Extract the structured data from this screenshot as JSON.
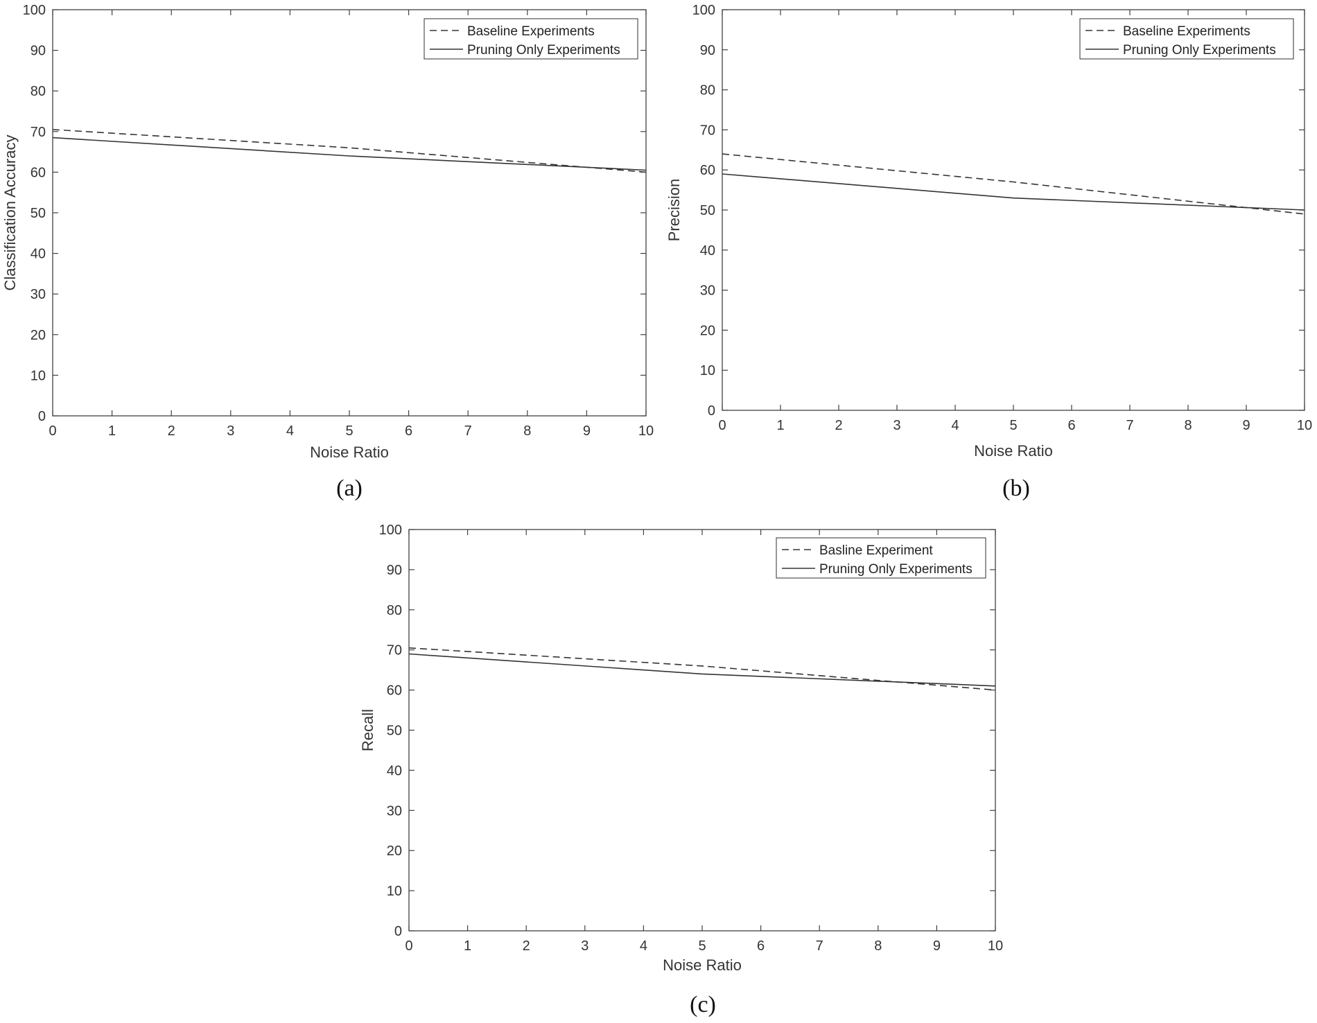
{
  "chart_data": [
    {
      "type": "line",
      "caption": "(a)",
      "xlabel": "Noise Ratio",
      "ylabel": "Classification Accuracy",
      "xlim": [
        0,
        10
      ],
      "ylim": [
        0,
        100
      ],
      "xticks": [
        0,
        1,
        2,
        3,
        4,
        5,
        6,
        7,
        8,
        9,
        10
      ],
      "yticks": [
        0,
        10,
        20,
        30,
        40,
        50,
        60,
        70,
        80,
        90,
        100
      ],
      "legend_position": "top-right",
      "grid": false,
      "series": [
        {
          "name": "Baseline Experiments",
          "style": "dashed",
          "x": [
            0,
            5,
            10
          ],
          "y": [
            70.5,
            66,
            60
          ]
        },
        {
          "name": "Pruning Only Experiments",
          "style": "solid",
          "x": [
            0,
            5,
            10
          ],
          "y": [
            68.5,
            64,
            60.5
          ]
        }
      ]
    },
    {
      "type": "line",
      "caption": "(b)",
      "xlabel": "Noise Ratio",
      "ylabel": "Precision",
      "xlim": [
        0,
        10
      ],
      "ylim": [
        0,
        100
      ],
      "xticks": [
        0,
        1,
        2,
        3,
        4,
        5,
        6,
        7,
        8,
        9,
        10
      ],
      "yticks": [
        0,
        10,
        20,
        30,
        40,
        50,
        60,
        70,
        80,
        90,
        100
      ],
      "legend_position": "top-right",
      "grid": false,
      "series": [
        {
          "name": "Baseline Experiments",
          "style": "dashed",
          "x": [
            0,
            5,
            10
          ],
          "y": [
            64,
            57,
            49
          ]
        },
        {
          "name": "Pruning Only Experiments",
          "style": "solid",
          "x": [
            0,
            5,
            10
          ],
          "y": [
            59,
            53,
            50
          ]
        }
      ]
    },
    {
      "type": "line",
      "caption": "(c)",
      "xlabel": "Noise Ratio",
      "ylabel": "Recall",
      "xlim": [
        0,
        10
      ],
      "ylim": [
        0,
        100
      ],
      "xticks": [
        0,
        1,
        2,
        3,
        4,
        5,
        6,
        7,
        8,
        9,
        10
      ],
      "yticks": [
        0,
        10,
        20,
        30,
        40,
        50,
        60,
        70,
        80,
        90,
        100
      ],
      "legend_position": "top-right",
      "grid": false,
      "series": [
        {
          "name": "Basline Experiment",
          "style": "dashed",
          "x": [
            0,
            5,
            10
          ],
          "y": [
            70.5,
            66,
            60
          ]
        },
        {
          "name": "Pruning Only Experiments",
          "style": "solid",
          "x": [
            0,
            5,
            10
          ],
          "y": [
            69,
            64,
            61
          ]
        }
      ]
    }
  ],
  "colors": {
    "line": "#333333",
    "axes": "#404040",
    "background": "#ffffff"
  }
}
